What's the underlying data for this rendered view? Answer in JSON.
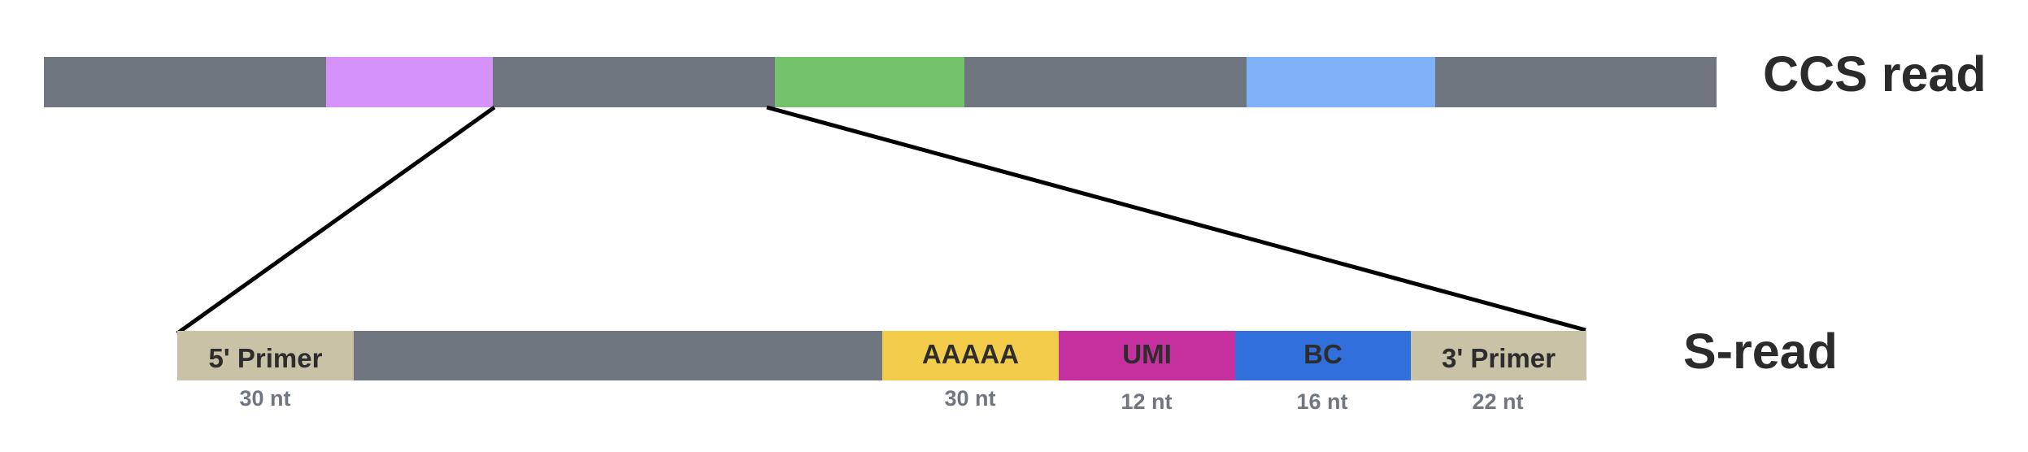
{
  "ccs": {
    "label": "CCS read",
    "segments": [
      {
        "color": "#6f7680",
        "length": 340
      },
      {
        "color": "#d593fa",
        "length": 200
      },
      {
        "color": "#6f7680",
        "length": 340
      },
      {
        "color": "#74c26c",
        "length": 230
      },
      {
        "color": "#6f7680",
        "length": 340
      },
      {
        "color": "#7fb0f8",
        "length": 230
      },
      {
        "color": "#6f7680",
        "length": 340
      }
    ]
  },
  "sread": {
    "label": "S-read",
    "segments": [
      {
        "name": "5-primer",
        "label": "5' Primer",
        "color": "#c8c3a6",
        "sub": "30 nt"
      },
      {
        "name": "insert",
        "label": "",
        "color": "#6f7680",
        "sub": ""
      },
      {
        "name": "polya",
        "label": "AAAAA",
        "color": "#f2cc4a",
        "sub": "30 nt"
      },
      {
        "name": "umi",
        "label": "UMI",
        "color": "#c62f9e",
        "sub": "12 nt"
      },
      {
        "name": "bc",
        "label": "BC",
        "color": "#316fdc",
        "sub": "16 nt"
      },
      {
        "name": "3-primer",
        "label": "3' Primer",
        "color": "#c8c3a6",
        "sub": "22 nt"
      }
    ]
  }
}
